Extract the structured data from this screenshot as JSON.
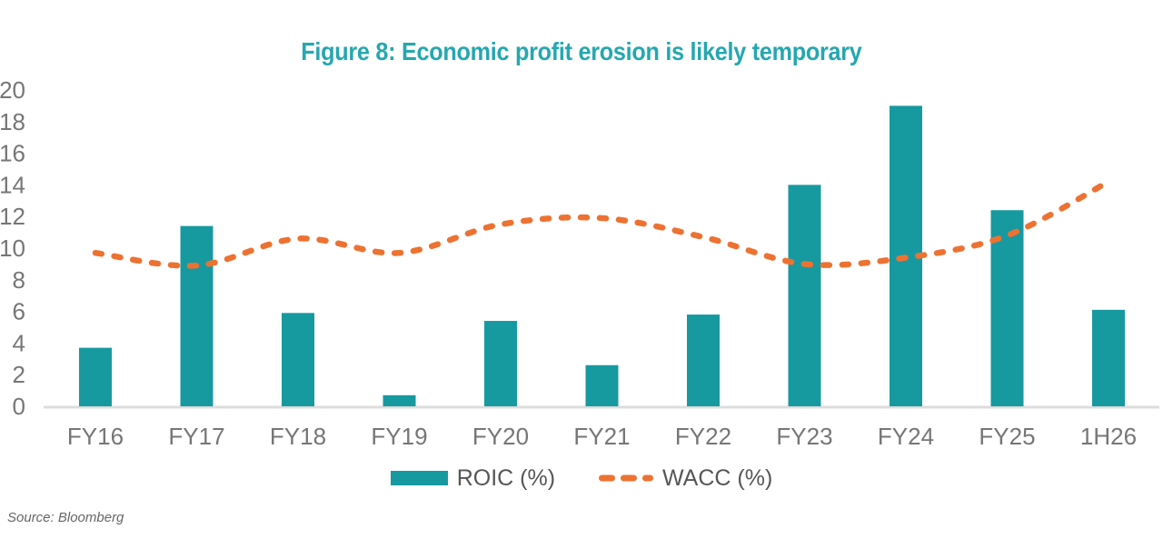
{
  "title": "Figure 8: Economic profit erosion is likely temporary",
  "source": "Source: Bloomberg",
  "colors": {
    "bar_teal": "#1799A0",
    "line_orange": "#ED7232",
    "title_teal": "#25A7B0",
    "axis_text": "#767676",
    "legend_text": "#565656",
    "baseline_gray": "#DCDCDC"
  },
  "chart_data": {
    "type": "bar",
    "title": "Figure 8: Economic profit erosion is likely temporary",
    "categories": [
      "FY16",
      "FY17",
      "FY18",
      "FY19",
      "FY20",
      "FY21",
      "FY22",
      "FY23",
      "FY24",
      "FY25",
      "1H26"
    ],
    "series": [
      {
        "name": "ROIC (%)",
        "type": "bar",
        "color": "#1799A0",
        "values": [
          3.7,
          11.4,
          5.9,
          0.7,
          5.4,
          2.6,
          5.8,
          14.0,
          19.0,
          12.4,
          6.1
        ]
      },
      {
        "name": "WACC (%)",
        "type": "line",
        "dashed": true,
        "smooth": true,
        "color": "#ED7232",
        "values": [
          9.7,
          8.9,
          10.6,
          9.7,
          11.5,
          11.9,
          10.7,
          9.0,
          9.4,
          10.8,
          14.2
        ]
      }
    ],
    "xlabel": "",
    "ylabel": "",
    "ylim": [
      0,
      20
    ],
    "yticks": [
      0,
      2,
      4,
      6,
      8,
      10,
      12,
      14,
      16,
      18,
      20
    ],
    "grid": false,
    "legend_position": "bottom"
  }
}
